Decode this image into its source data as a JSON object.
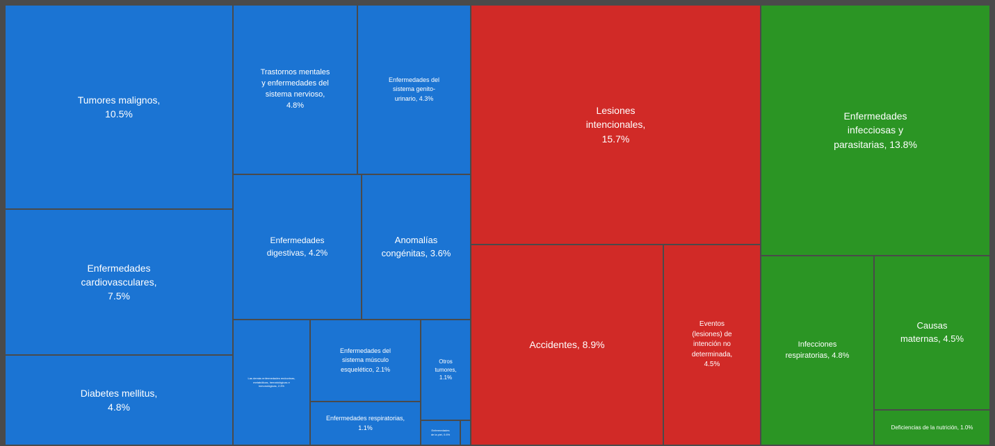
{
  "chart_data": {
    "type": "treemap",
    "series": [
      {
        "color": "#1b74d3",
        "labels": [
          "Tumores malignos, 10.5%",
          "Enfermedades cardiovasculares, 7.5%",
          "Diabetes mellitus, 4.8%",
          "Trastornos mentales y enfermedades del sistema nervioso, 4.8%",
          "Enfermedades del sistema genito-urinario, 4.3%",
          "Enfermedades digestivas, 4.2%",
          "Anomalías congénitas, 3.6%",
          "Las demás enfermedades endocrinas, metabólicas, hematológicas e inmunológicas, 2.3%",
          "Enfermedades del sistema músculo esquelético, 2.1%",
          "Otros tumores, 1.1%",
          "Enfermedades respiratorias, 1.1%",
          "Enfermedades de la piel, 0.6%"
        ],
        "values": [
          10.5,
          7.5,
          4.8,
          4.8,
          4.3,
          4.2,
          3.6,
          2.3,
          2.1,
          1.1,
          1.1,
          0.6
        ]
      },
      {
        "color": "#d12a27",
        "labels": [
          "Lesiones intencionales, 15.7%",
          "Accidentes, 8.9%",
          "Eventos (lesiones) de intención no determinada, 4.5%"
        ],
        "values": [
          15.7,
          8.9,
          4.5
        ]
      },
      {
        "color": "#2b9524",
        "labels": [
          "Enfermedades infecciosas y parasitarias, 13.8%",
          "Infecciones respiratorias, 4.8%",
          "Causas maternas, 4.5%",
          "Deficiencias de la nutrición, 1.0%"
        ],
        "values": [
          13.8,
          4.8,
          4.5,
          1.0
        ]
      }
    ]
  }
}
